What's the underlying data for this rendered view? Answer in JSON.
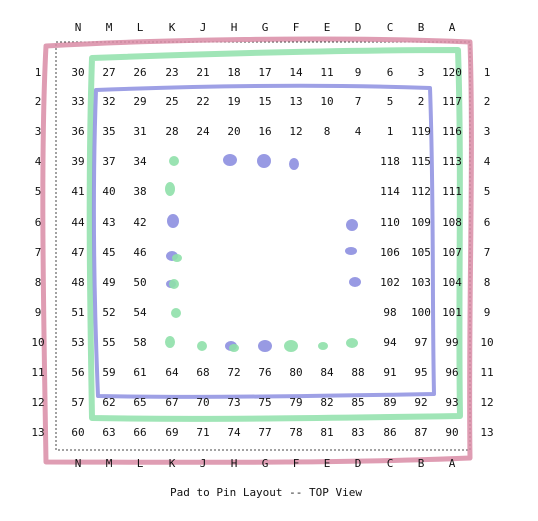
{
  "caption": "Pad to Pin Layout -- TOP View",
  "column_letters": [
    "N",
    "M",
    "L",
    "K",
    "J",
    "H",
    "G",
    "F",
    "E",
    "D",
    "C",
    "B",
    "A"
  ],
  "row_numbers": [
    "1",
    "2",
    "3",
    "4",
    "5",
    "6",
    "7",
    "8",
    "9",
    "10",
    "11",
    "12",
    "13"
  ],
  "grid": [
    [
      "30",
      "27",
      "26",
      "23",
      "21",
      "18",
      "17",
      "14",
      "11",
      "9",
      "6",
      "3",
      "120"
    ],
    [
      "33",
      "32",
      "29",
      "25",
      "22",
      "19",
      "15",
      "13",
      "10",
      "7",
      "5",
      "2",
      "117"
    ],
    [
      "36",
      "35",
      "31",
      "28",
      "24",
      "20",
      "16",
      "12",
      "8",
      "4",
      "1",
      "119",
      "116"
    ],
    [
      "39",
      "37",
      "34",
      "",
      "",
      "",
      "",
      "",
      "",
      "",
      "118",
      "115",
      "113"
    ],
    [
      "41",
      "40",
      "38",
      "",
      "",
      "",
      "",
      "",
      "",
      "",
      "114",
      "112",
      "111"
    ],
    [
      "44",
      "43",
      "42",
      "",
      "",
      "",
      "",
      "",
      "",
      "",
      "110",
      "109",
      "108"
    ],
    [
      "47",
      "45",
      "46",
      "",
      "",
      "",
      "",
      "",
      "",
      "",
      "106",
      "105",
      "107"
    ],
    [
      "48",
      "49",
      "50",
      "",
      "",
      "",
      "",
      "",
      "",
      "",
      "102",
      "103",
      "104"
    ],
    [
      "51",
      "52",
      "54",
      "",
      "",
      "",
      "",
      "",
      "",
      "",
      "98",
      "100",
      "101"
    ],
    [
      "53",
      "55",
      "58",
      "",
      "",
      "",
      "",
      "",
      "",
      "",
      "94",
      "97",
      "99"
    ],
    [
      "56",
      "59",
      "61",
      "64",
      "68",
      "72",
      "76",
      "80",
      "84",
      "88",
      "91",
      "95",
      "96"
    ],
    [
      "57",
      "62",
      "65",
      "67",
      "70",
      "73",
      "75",
      "79",
      "82",
      "85",
      "89",
      "92",
      "93"
    ],
    [
      "60",
      "63",
      "66",
      "69",
      "71",
      "74",
      "77",
      "78",
      "81",
      "83",
      "86",
      "87",
      "90"
    ]
  ],
  "colors": {
    "pink": "#d98ca6",
    "green": "#8fe0aa",
    "blue": "#8d8fe0"
  }
}
